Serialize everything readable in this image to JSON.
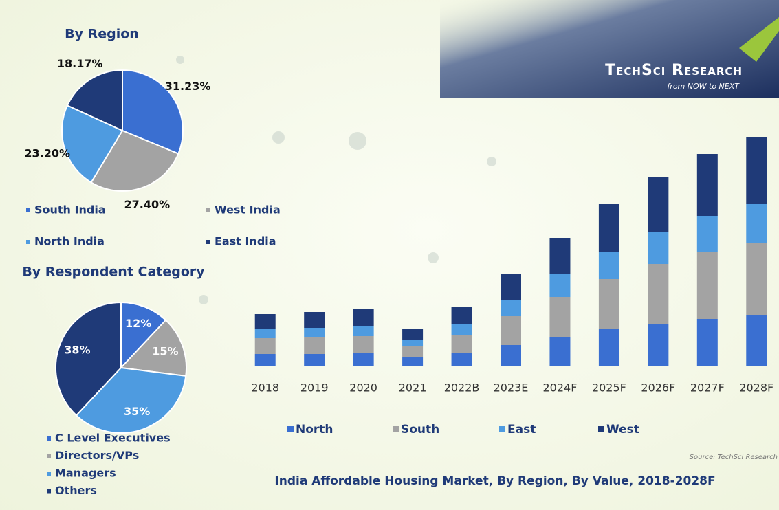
{
  "logo": {
    "name": "TechSci Research",
    "tagline": "from NOW to NEXT"
  },
  "chart_data": [
    {
      "type": "pie",
      "title": "By Region",
      "labels": [
        "South India",
        "West India",
        "North India",
        "East India"
      ],
      "values": [
        31.23,
        27.4,
        23.2,
        18.17
      ],
      "value_labels": [
        "31.23%",
        "27.40%",
        "23.20%",
        "18.17%"
      ],
      "colors": [
        "#3a6fd1",
        "#a3a3a3",
        "#4e9be0",
        "#1f3a78"
      ]
    },
    {
      "type": "pie",
      "title": "By Respondent Category",
      "labels": [
        "C Level Executives",
        "Directors/VPs",
        "Managers",
        "Others"
      ],
      "values": [
        12,
        15,
        35,
        38
      ],
      "value_labels": [
        "12%",
        "15%",
        "35%",
        "38%"
      ],
      "colors": [
        "#3a6fd1",
        "#a3a3a3",
        "#4e9be0",
        "#1f3a78"
      ]
    },
    {
      "type": "bar",
      "stacked": true,
      "title": "India Affordable Housing Market, By Region, By Value, 2018-2028F",
      "source": "Source: TechSci Research",
      "categories": [
        "2018",
        "2019",
        "2020",
        "2021",
        "2022B",
        "2023E",
        "2024F",
        "2025F",
        "2026F",
        "2027F",
        "2028F"
      ],
      "series": [
        {
          "name": "North",
          "color": "#3a6fd1",
          "values": [
            18,
            18,
            19,
            13,
            19,
            31,
            42,
            54,
            62,
            69,
            74
          ]
        },
        {
          "name": "South",
          "color": "#a3a3a3",
          "values": [
            23,
            24,
            25,
            17,
            27,
            42,
            59,
            73,
            87,
            98,
            106
          ]
        },
        {
          "name": "East",
          "color": "#4e9be0",
          "values": [
            14,
            14,
            15,
            9,
            15,
            24,
            33,
            40,
            47,
            52,
            56
          ]
        },
        {
          "name": "West",
          "color": "#1f3a78",
          "values": [
            21,
            23,
            25,
            15,
            25,
            37,
            53,
            69,
            80,
            90,
            98
          ]
        }
      ],
      "ylim": [
        0,
        340
      ]
    }
  ]
}
